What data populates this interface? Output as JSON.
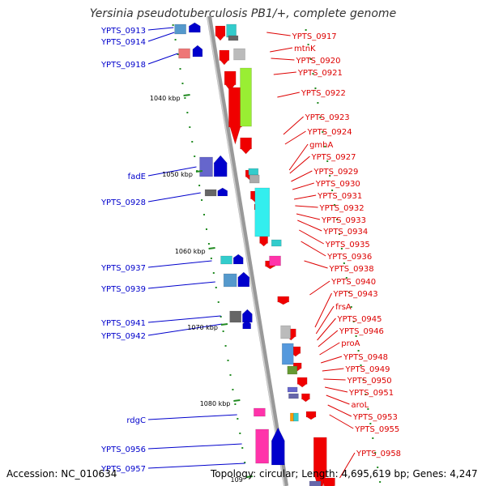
{
  "title": "Yersinia pseudotuberculosis PB1/+, complete genome",
  "footer": {
    "accession": "Accession: NC_010634",
    "topology": "Topology: circular; Length: 4,695,619 bp; Genes: 4,247"
  },
  "colors": {
    "forward": "#f00000",
    "reverse": "#0000cc",
    "backbone": "#999999",
    "tick": "#228b22"
  },
  "scale_ticks": [
    "1040 kbp",
    "1050 kbp",
    "1060 kbp",
    "1070 kbp",
    "1080 kbp",
    "109"
  ],
  "left_labels": [
    "YPTS_0913",
    "YPTS_0914",
    "YPTS_0918",
    "fadE",
    "YPTS_0928",
    "YPTS_0937",
    "YPTS_0939",
    "YPTS_0941",
    "YPTS_0942",
    "rdgC",
    "YPTS_0956",
    "YPTS_0957"
  ],
  "right_labels": [
    "YPTS_0917",
    "mtnK",
    "YPTS_0920",
    "YPTS_0921",
    "YPTS_0922",
    "YPTS_0923",
    "YPTS_0924",
    "gmhA",
    "YPTS_0927",
    "YPTS_0929",
    "YPTS_0930",
    "YPTS_0931",
    "YPTS_0932",
    "YPTS_0933",
    "YPTS_0934",
    "YPTS_0935",
    "YPTS_0936",
    "YPTS_0938",
    "YPTS_0940",
    "YPTS_0943",
    "frsA",
    "YPTS_0945",
    "YPTS_0946",
    "proA",
    "YPTS_0948",
    "YPTS_0949",
    "YPTS_0950",
    "YPTS_0951",
    "aroL",
    "YPTS_0953",
    "YPTS_0955",
    "YPTS_0958"
  ]
}
